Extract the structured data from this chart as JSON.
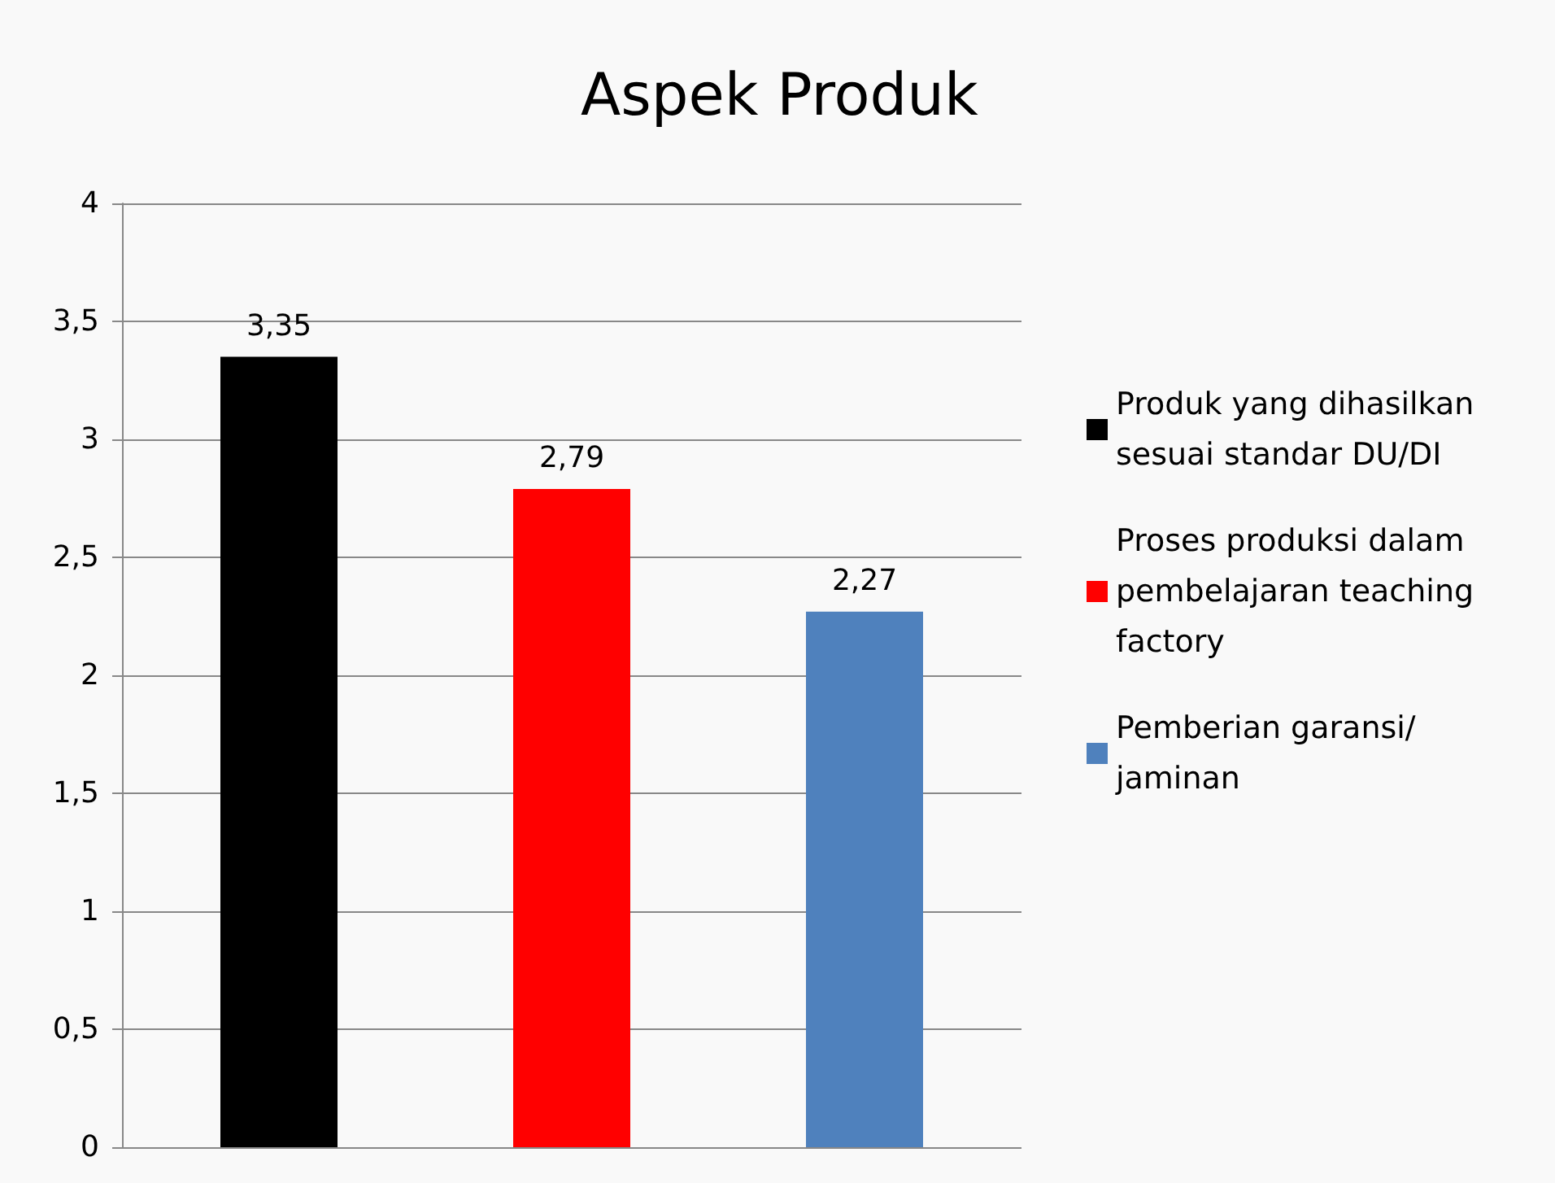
{
  "chart_data": {
    "type": "bar",
    "title": "Aspek Produk",
    "categories": [
      null
    ],
    "series": [
      {
        "name": "Produk yang dihasilkan sesuai standar DU/DI",
        "color": "#000000",
        "values": [
          3.35
        ],
        "value_labels": [
          "3,35"
        ]
      },
      {
        "name": "Proses produksi dalam pembelajaran teaching factory",
        "color": "#ff0000",
        "values": [
          2.79
        ],
        "value_labels": [
          "2,79"
        ]
      },
      {
        "name": "Pemberian garansi/jaminan",
        "color": "#4f81bd",
        "values": [
          2.27
        ],
        "value_labels": [
          "2,27"
        ]
      }
    ],
    "ylim": [
      0,
      4
    ],
    "yticks": [
      0,
      {
        "value": 0.5,
        "label": "0,5"
      },
      1,
      {
        "value": 1.5,
        "label": "1,5"
      },
      2,
      {
        "value": 2.5,
        "label": "2,5"
      },
      3,
      {
        "value": 3.5,
        "label": "3,5"
      },
      4
    ],
    "grid": "y",
    "legend": "right"
  }
}
